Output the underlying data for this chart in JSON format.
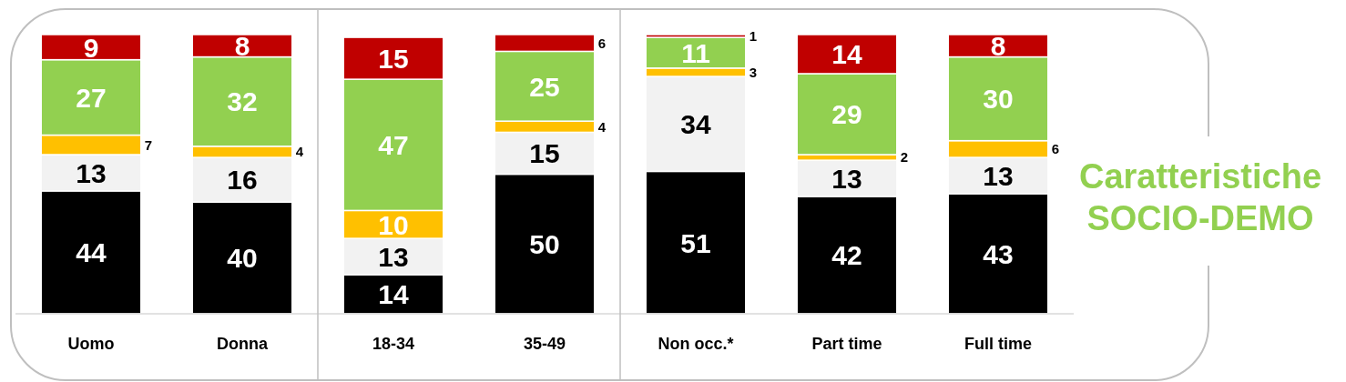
{
  "chart_data": {
    "type": "bar",
    "title": "Caratteristiche SOCIO-DEMO",
    "stacked": true,
    "data_labels": true,
    "legend": false,
    "grid": false,
    "tick_labels": "x",
    "ylim": [
      0,
      100
    ],
    "categories": [
      "Uomo",
      "Donna",
      "18-34",
      "35-49",
      "Non occ.*",
      "Part time",
      "Full time"
    ],
    "series": [
      {
        "color": "#000000",
        "values": [
          44,
          40,
          14,
          50,
          51,
          42,
          43
        ]
      },
      {
        "color": "#f2f2f2",
        "values": [
          13,
          16,
          13,
          15,
          34,
          13,
          13
        ]
      },
      {
        "color": "#ffc000",
        "values": [
          7,
          4,
          10,
          4,
          3,
          2,
          6
        ]
      },
      {
        "color": "#92d050",
        "values": [
          27,
          32,
          47,
          25,
          11,
          29,
          30
        ]
      },
      {
        "color": "#c00000",
        "values": [
          9,
          8,
          15,
          6,
          1,
          14,
          8
        ]
      }
    ]
  }
}
